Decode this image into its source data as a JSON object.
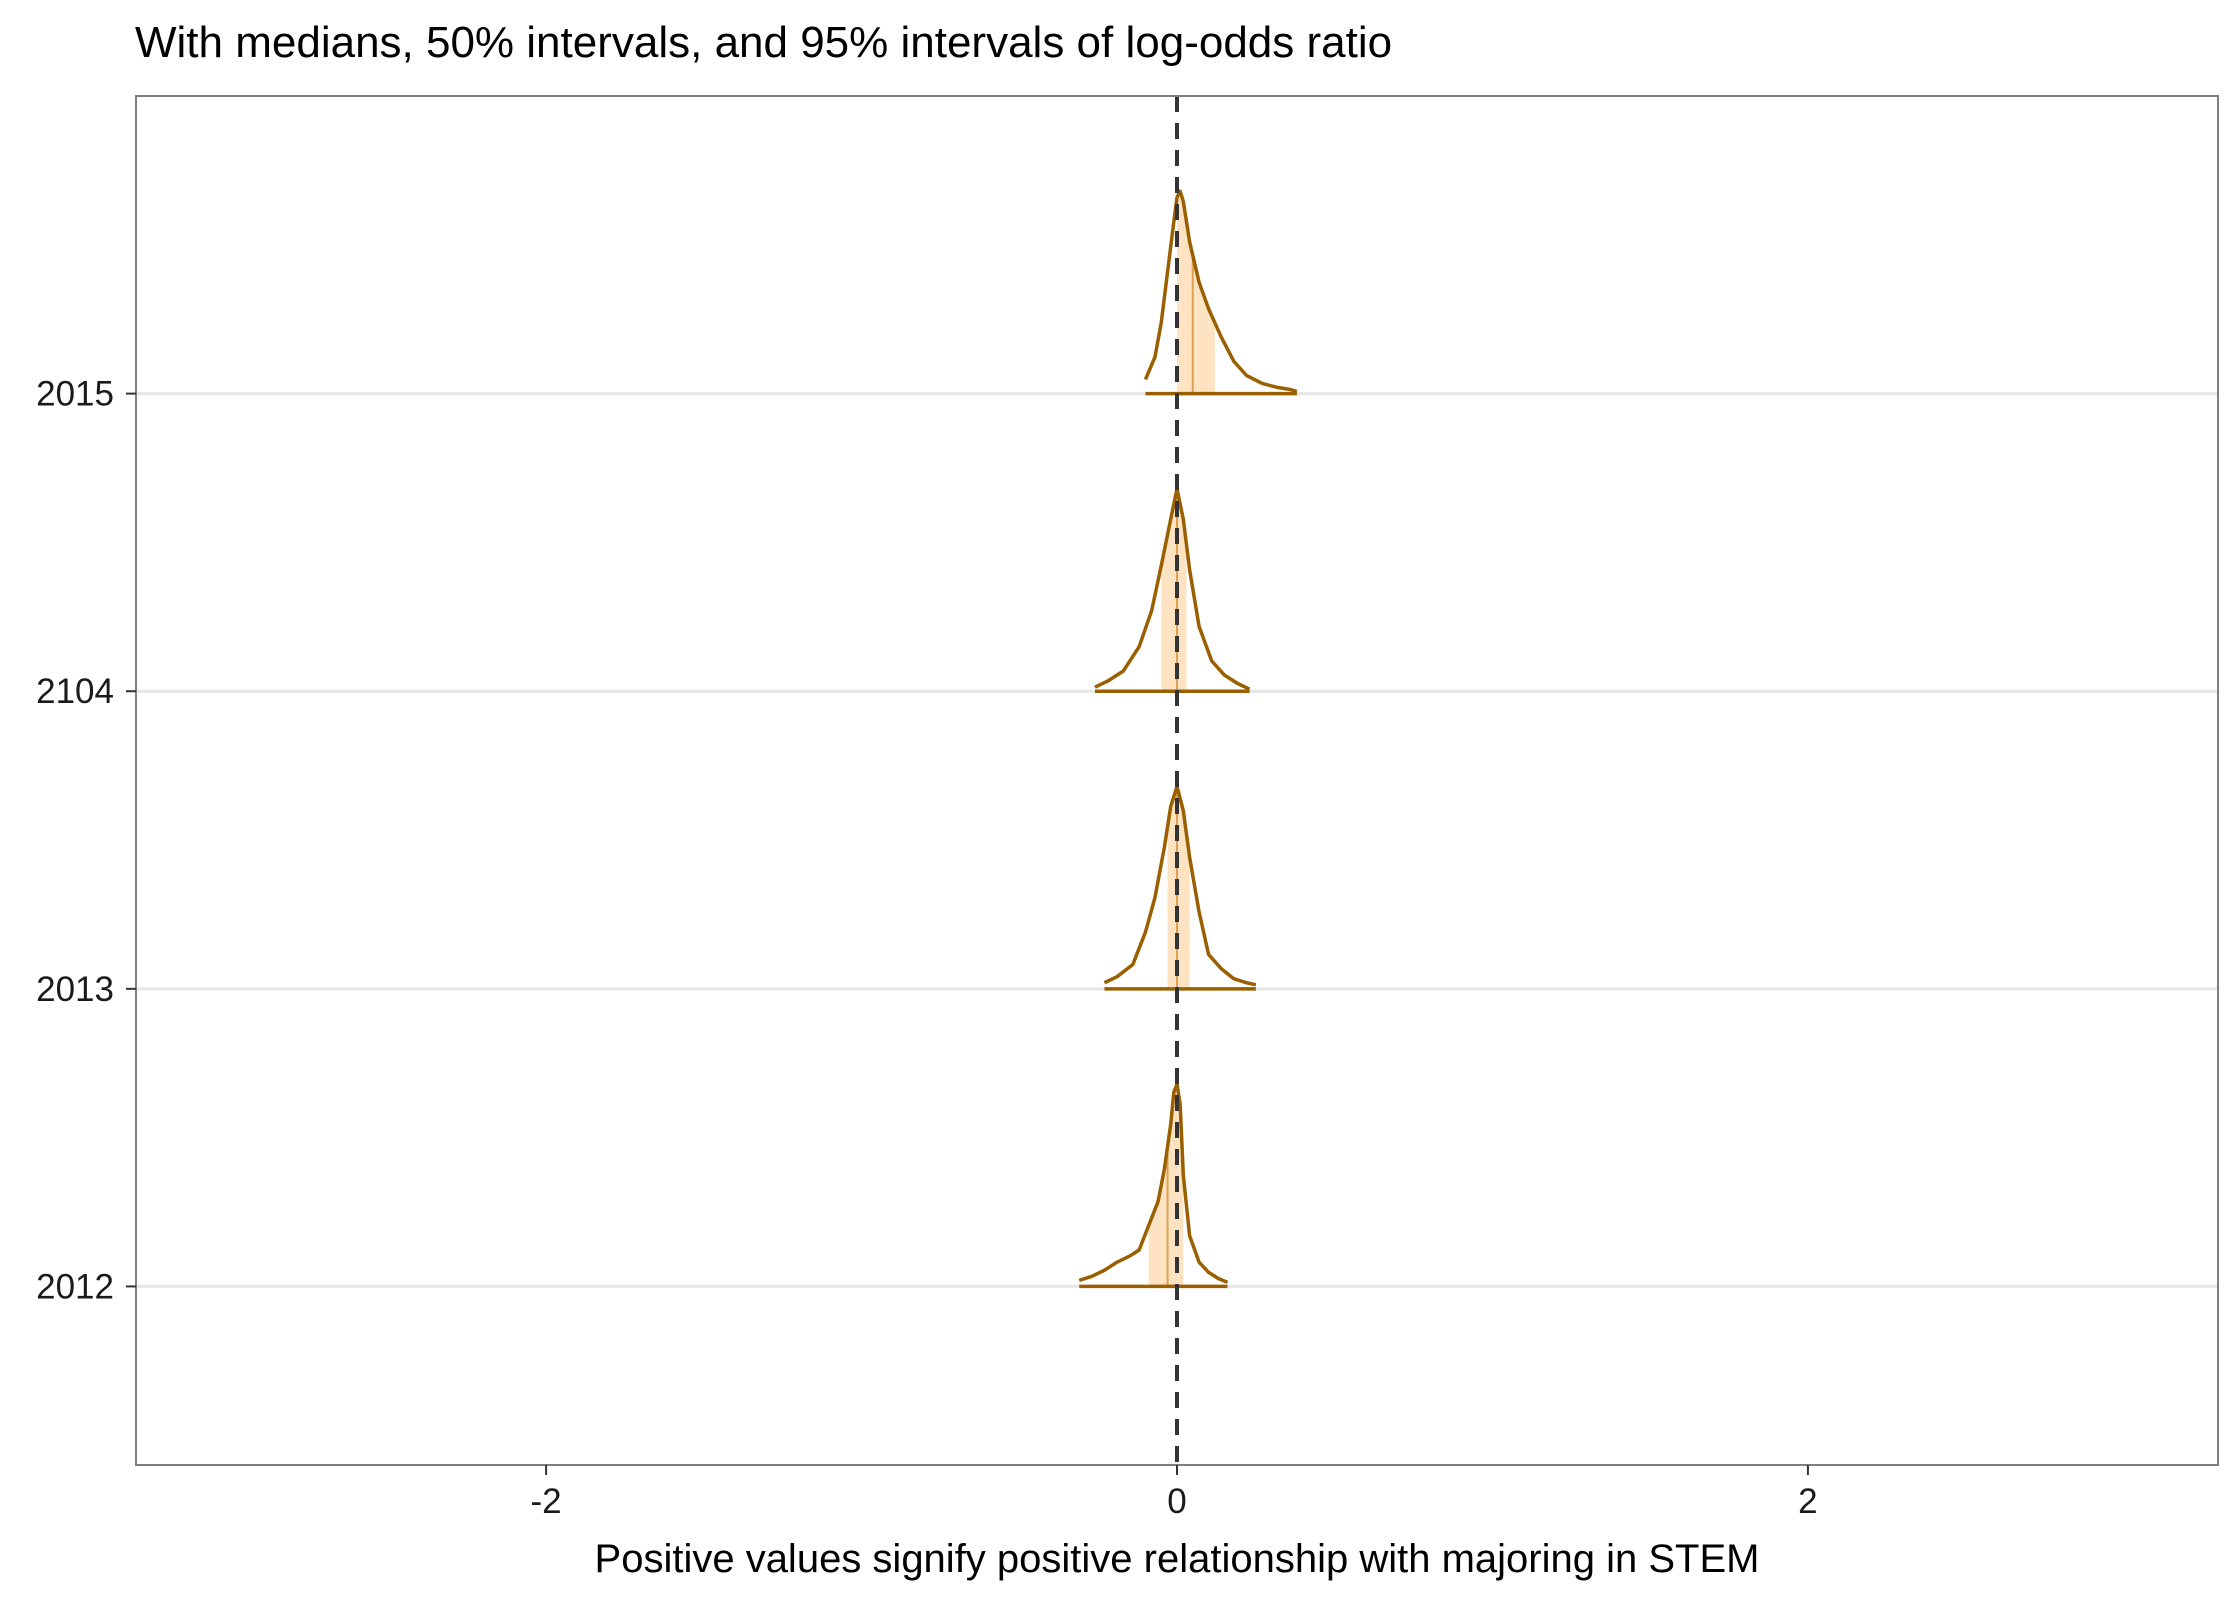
{
  "chart_data": {
    "type": "density",
    "title": "With medians, 50% intervals, and 95% intervals of log-odds ratio",
    "xlabel": "Positive values signify positive relationship with majoring in STEM",
    "ylabel": "",
    "xlim": [
      -3.3,
      3.3
    ],
    "x_ticks": [
      {
        "value": -2,
        "label": "-2"
      },
      {
        "value": 0,
        "label": "0"
      },
      {
        "value": 2,
        "label": "2"
      }
    ],
    "reference_line": {
      "x": 0,
      "style": "dashed",
      "color": "#333333"
    },
    "grid": {
      "horizontal": true,
      "vertical": false
    },
    "colors": {
      "outline": "#9A5F00",
      "interval_fill": "#FDE3C2",
      "median_line": "#E0A050",
      "gridline": "#E6E6E6",
      "panel_border": "#7f7f7f"
    },
    "series": [
      {
        "category": "2012",
        "median": -0.03,
        "ci50": [
          -0.09,
          0.02
        ],
        "ci95": [
          -0.31,
          0.16
        ],
        "density": [
          [
            -0.31,
            0.03
          ],
          [
            -0.27,
            0.05
          ],
          [
            -0.23,
            0.08
          ],
          [
            -0.19,
            0.12
          ],
          [
            -0.15,
            0.15
          ],
          [
            -0.12,
            0.18
          ],
          [
            -0.09,
            0.3
          ],
          [
            -0.06,
            0.42
          ],
          [
            -0.04,
            0.58
          ],
          [
            -0.02,
            0.8
          ],
          [
            -0.01,
            0.96
          ],
          [
            0.0,
            1.0
          ],
          [
            0.01,
            0.9
          ],
          [
            0.02,
            0.55
          ],
          [
            0.04,
            0.25
          ],
          [
            0.07,
            0.12
          ],
          [
            0.1,
            0.07
          ],
          [
            0.13,
            0.04
          ],
          [
            0.16,
            0.02
          ]
        ]
      },
      {
        "category": "2013",
        "median": 0.0,
        "ci50": [
          -0.03,
          0.04
        ],
        "ci95": [
          -0.23,
          0.25
        ],
        "density": [
          [
            -0.23,
            0.03
          ],
          [
            -0.19,
            0.06
          ],
          [
            -0.14,
            0.12
          ],
          [
            -0.1,
            0.28
          ],
          [
            -0.07,
            0.45
          ],
          [
            -0.04,
            0.7
          ],
          [
            -0.02,
            0.9
          ],
          [
            0.0,
            1.0
          ],
          [
            0.02,
            0.88
          ],
          [
            0.04,
            0.65
          ],
          [
            0.07,
            0.38
          ],
          [
            0.1,
            0.17
          ],
          [
            0.14,
            0.1
          ],
          [
            0.18,
            0.05
          ],
          [
            0.22,
            0.03
          ],
          [
            0.25,
            0.02
          ]
        ]
      },
      {
        "category": "2104",
        "median": 0.0,
        "ci50": [
          -0.05,
          0.03
        ],
        "ci95": [
          -0.26,
          0.23
        ],
        "density": [
          [
            -0.26,
            0.02
          ],
          [
            -0.22,
            0.05
          ],
          [
            -0.17,
            0.1
          ],
          [
            -0.12,
            0.22
          ],
          [
            -0.08,
            0.4
          ],
          [
            -0.05,
            0.62
          ],
          [
            -0.02,
            0.85
          ],
          [
            0.0,
            1.0
          ],
          [
            0.02,
            0.85
          ],
          [
            0.04,
            0.6
          ],
          [
            0.07,
            0.32
          ],
          [
            0.11,
            0.15
          ],
          [
            0.15,
            0.08
          ],
          [
            0.19,
            0.04
          ],
          [
            0.23,
            0.01
          ]
        ]
      },
      {
        "category": "2015",
        "median": 0.05,
        "ci50": [
          0.0,
          0.12
        ],
        "ci95": [
          -0.1,
          0.38
        ],
        "density": [
          [
            -0.1,
            0.07
          ],
          [
            -0.07,
            0.18
          ],
          [
            -0.05,
            0.35
          ],
          [
            -0.03,
            0.6
          ],
          [
            -0.01,
            0.85
          ],
          [
            0.0,
            0.97
          ],
          [
            0.01,
            1.0
          ],
          [
            0.02,
            0.95
          ],
          [
            0.04,
            0.75
          ],
          [
            0.07,
            0.55
          ],
          [
            0.1,
            0.42
          ],
          [
            0.14,
            0.28
          ],
          [
            0.18,
            0.16
          ],
          [
            0.22,
            0.09
          ],
          [
            0.27,
            0.05
          ],
          [
            0.32,
            0.03
          ],
          [
            0.36,
            0.02
          ],
          [
            0.38,
            0.01
          ]
        ]
      }
    ]
  }
}
